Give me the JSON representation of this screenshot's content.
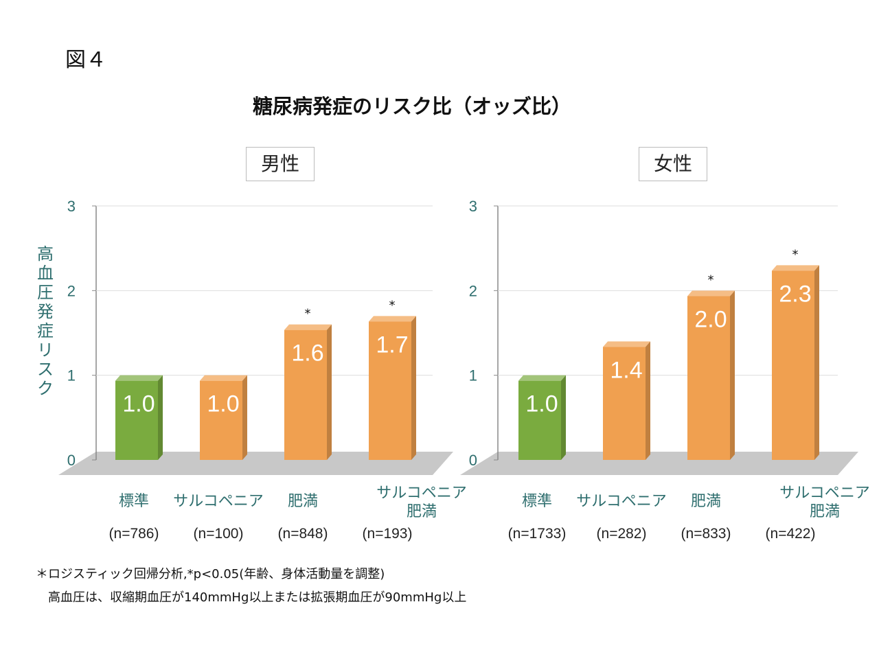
{
  "figure_label": "図４",
  "chart_data": [
    {
      "type": "bar",
      "title": "糖尿病発症のリスク比（オッズ比）",
      "subtitle": "男性",
      "ylabel": "高血圧発症リスク",
      "ylim": [
        0,
        3
      ],
      "yticks": [
        "0",
        "1",
        "2",
        "3"
      ],
      "grid": true,
      "categories": [
        "標準",
        "サルコペニア",
        "肥満",
        "サルコペニア\n肥満"
      ],
      "n_labels": [
        "(n=786)",
        "(n=100)",
        "(n=848)",
        "(n=193)"
      ],
      "values": [
        1.0,
        1.0,
        1.6,
        1.7
      ],
      "value_labels": [
        "1.0",
        "1.0",
        "1.6",
        "1.7"
      ],
      "significant": [
        "",
        "",
        "*",
        "*"
      ],
      "colors": [
        "#7aab3f",
        "#f0a050",
        "#f0a050",
        "#f0a050"
      ]
    },
    {
      "type": "bar",
      "subtitle": "女性",
      "ylim": [
        0,
        3
      ],
      "yticks": [
        "0",
        "1",
        "2",
        "3"
      ],
      "grid": true,
      "categories": [
        "標準",
        "サルコペニア",
        "肥満",
        "サルコペニア\n肥満"
      ],
      "n_labels": [
        "(n=1733)",
        "(n=282)",
        "(n=833)",
        "(n=422)"
      ],
      "values": [
        1.0,
        1.4,
        2.0,
        2.3
      ],
      "value_labels": [
        "1.0",
        "1.4",
        "2.0",
        "2.3"
      ],
      "significant": [
        "",
        "",
        "*",
        "*"
      ],
      "colors": [
        "#7aab3f",
        "#f0a050",
        "#f0a050",
        "#f0a050"
      ]
    }
  ],
  "footnotes": [
    "＊ロジスティック回帰分析,*p<0.05(年齢、身体活動量を調整)",
    "高血圧は、収縮期血圧が140mmHg以上または拡張期血圧が90mmHg以上"
  ]
}
